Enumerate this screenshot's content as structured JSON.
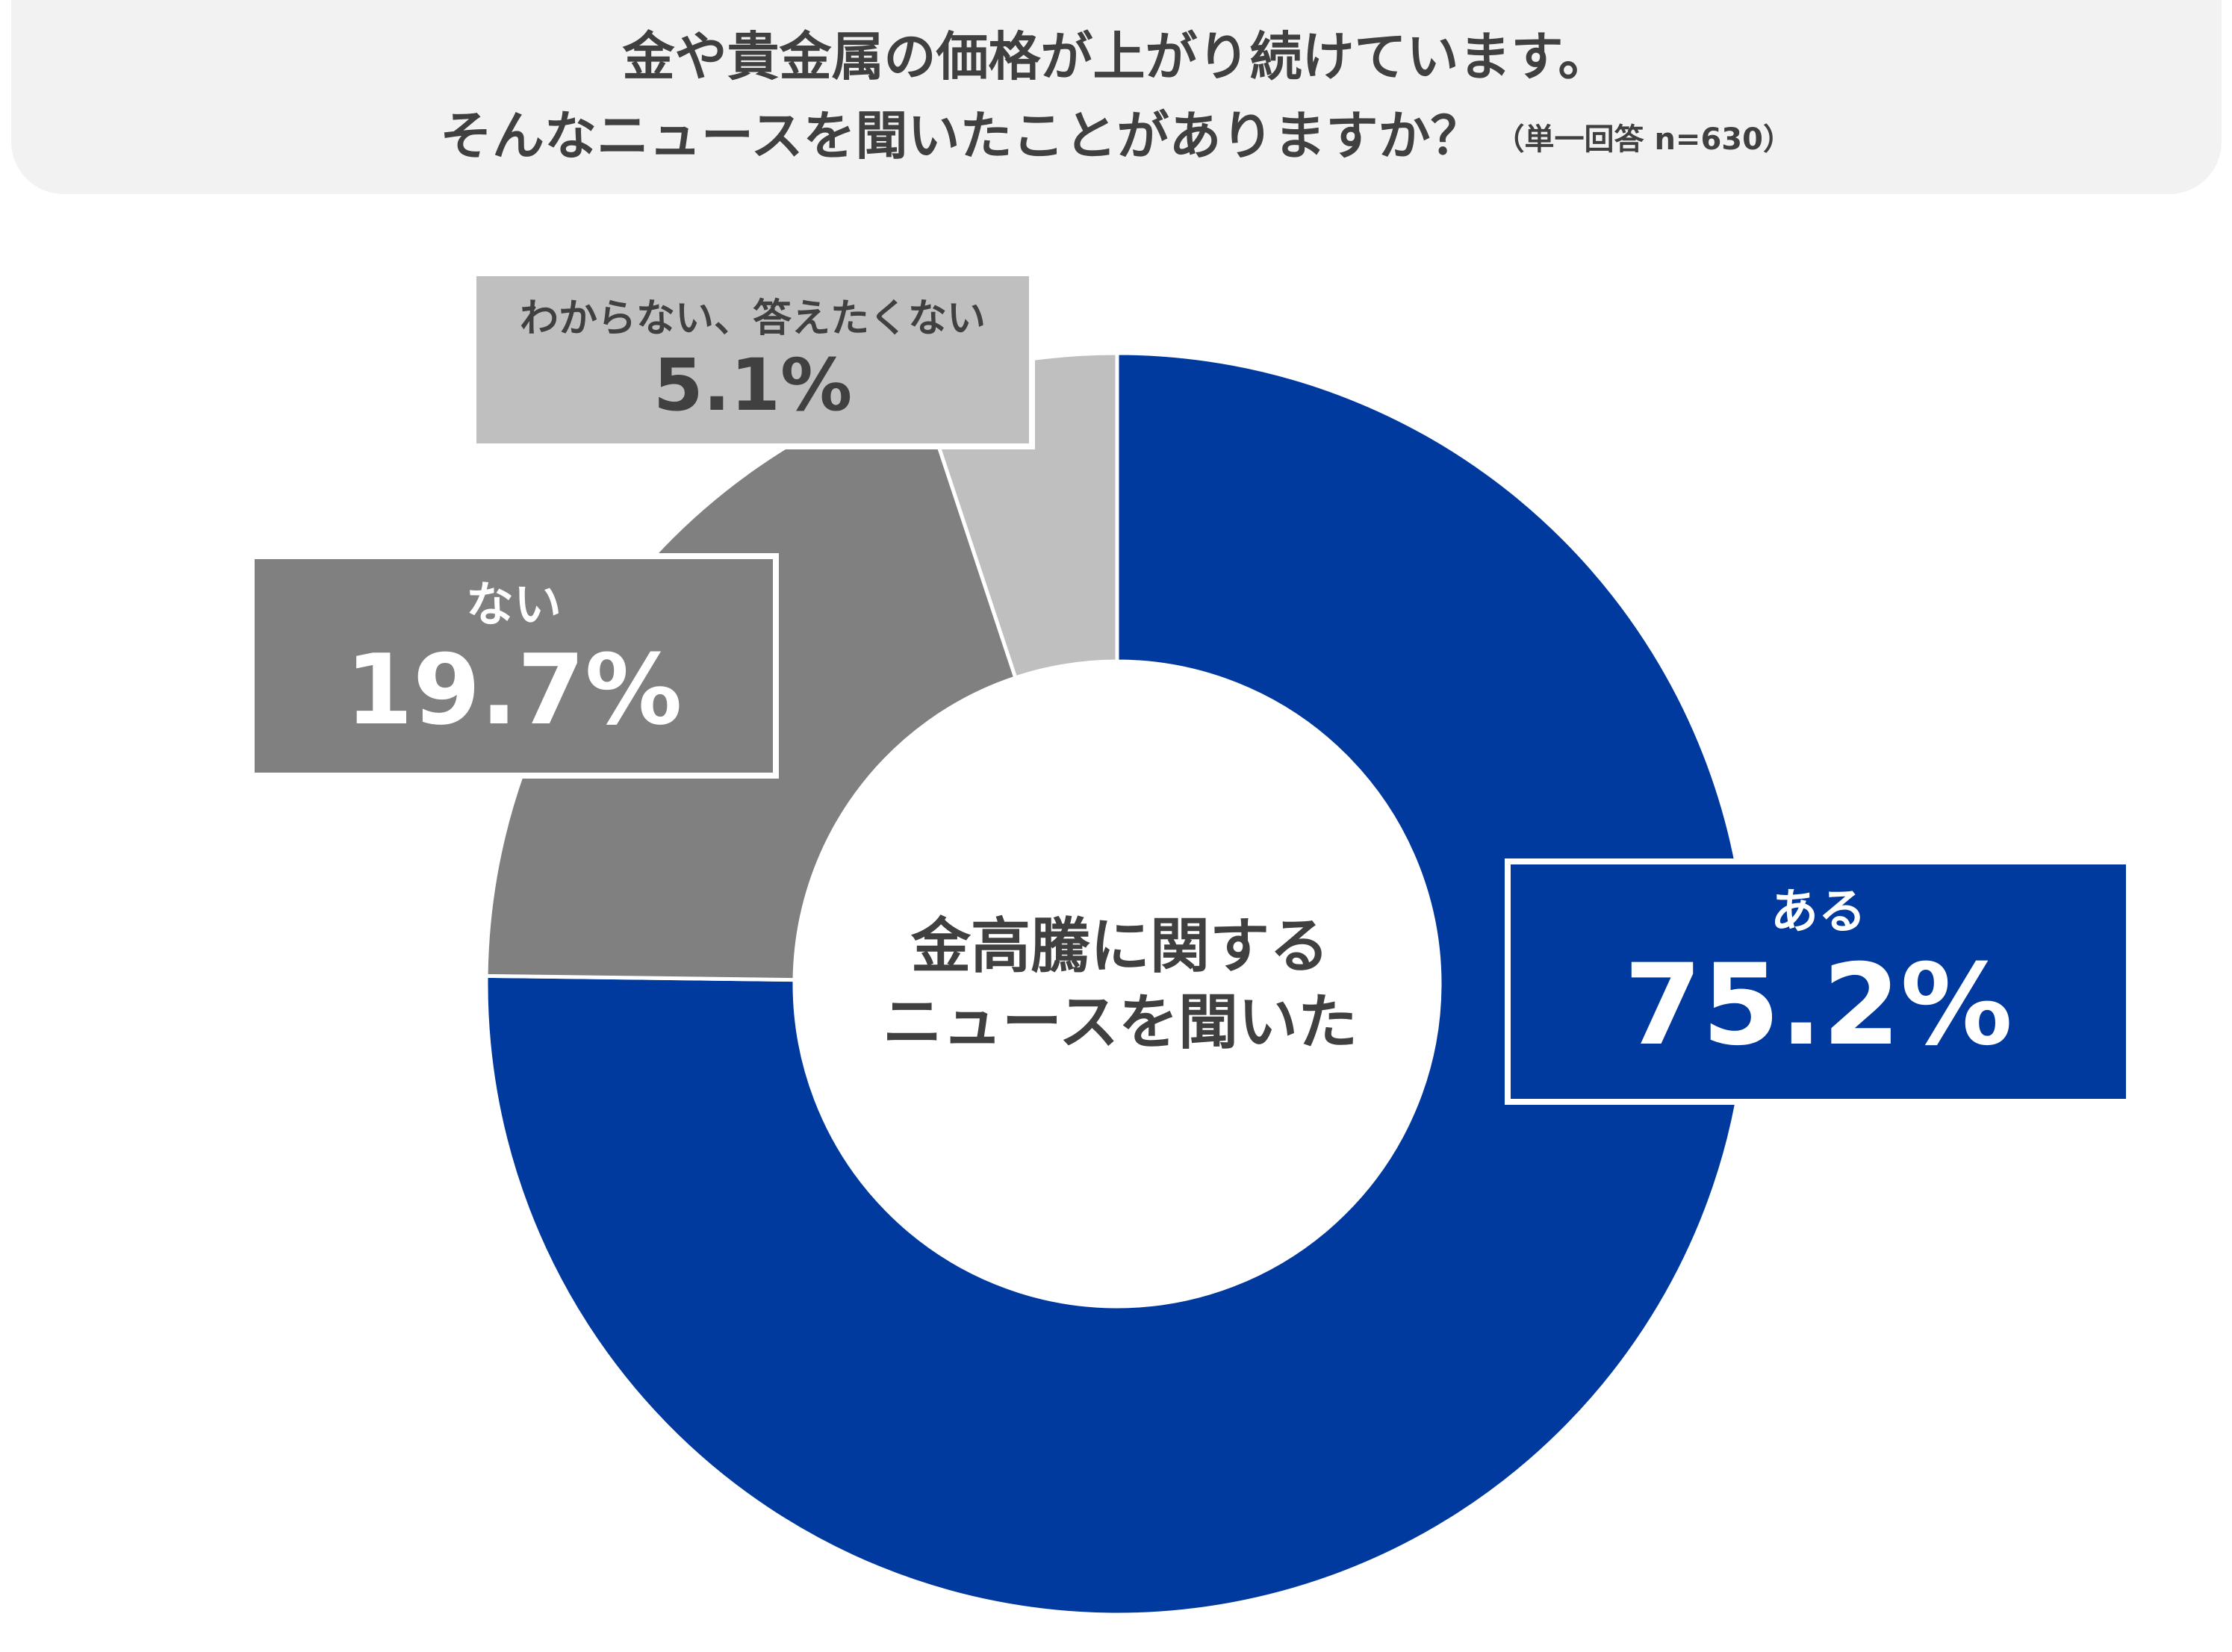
{
  "header": {
    "line1": "金や貴金属の価格が上がり続けています。",
    "line2": "そんなニュースを聞いたことがありますか？",
    "note": "（単一回答 n=630）"
  },
  "chart_data": {
    "type": "pie",
    "variant": "donut",
    "title": "金や貴金属の価格が上がり続けています。そんなニュースを聞いたことがありますか？",
    "subtitle": "（単一回答 n=630）",
    "center_label": [
      "金高騰に関する",
      "ニュースを聞いた"
    ],
    "categories": [
      "ある",
      "ない",
      "わからない、答えたくない"
    ],
    "values": [
      75.2,
      19.7,
      5.1
    ],
    "value_labels": [
      "75.2%",
      "19.7%",
      "5.1%"
    ],
    "colors": [
      "#003a9e",
      "#808080",
      "#bfbfbf"
    ],
    "start_angle_deg": 0,
    "direction": "clockwise",
    "legend": "none"
  }
}
